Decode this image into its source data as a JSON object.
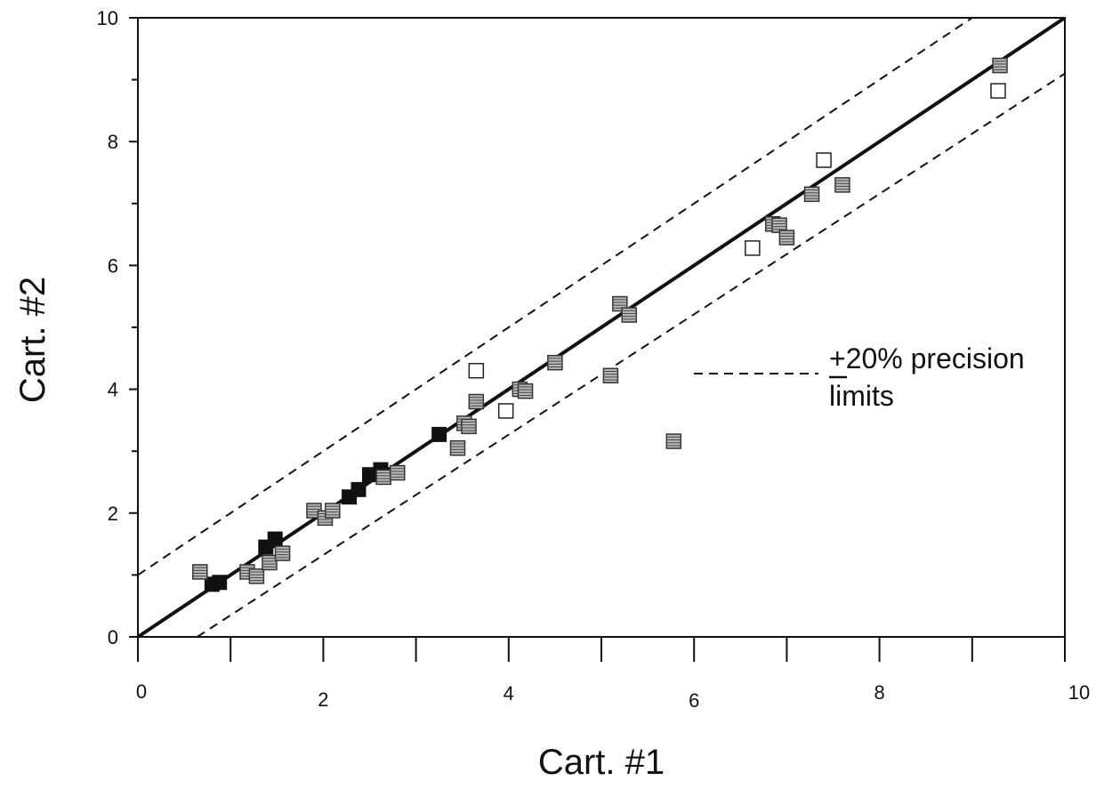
{
  "chart_data": {
    "type": "scatter",
    "title": "",
    "xlabel": "Cart. #1",
    "ylabel": "Cart. #2",
    "xlim": [
      0,
      10
    ],
    "ylim": [
      0,
      10
    ],
    "x_ticks": [
      "0",
      "2",
      "4",
      "6",
      "8",
      "10"
    ],
    "y_ticks": [
      "0",
      "2",
      "4",
      "6",
      "8",
      "10"
    ],
    "grid": false,
    "legend": {
      "text_line1": "+20% precision",
      "text_line2": "limits",
      "placement": "right"
    },
    "lines": [
      {
        "name": "1:1",
        "style": "solid",
        "x": [
          0,
          10
        ],
        "y": [
          0,
          10
        ]
      },
      {
        "name": "+20%",
        "style": "dashed",
        "x": [
          0,
          9
        ],
        "y": [
          1,
          10
        ]
      },
      {
        "name": "-20%",
        "style": "dashed",
        "x": [
          0.64,
          10
        ],
        "y": [
          0,
          9.1
        ]
      }
    ],
    "series": [
      {
        "marker": "filled-square",
        "color": "#111111",
        "x": [
          0.8,
          0.88,
          1.38,
          1.48,
          2.28,
          2.38,
          2.5,
          2.62,
          3.25
        ],
        "y": [
          0.85,
          0.88,
          1.45,
          1.58,
          2.26,
          2.38,
          2.62,
          2.7,
          3.27
        ]
      },
      {
        "marker": "hatched-square",
        "color": "#8a8a8a",
        "x": [
          0.67,
          1.18,
          1.28,
          1.42,
          1.56,
          1.9,
          2.02,
          2.1,
          2.65,
          2.8,
          3.45,
          3.52,
          3.57,
          3.65,
          4.12,
          4.18,
          4.5,
          5.1,
          5.2,
          5.3,
          5.78,
          6.85,
          6.92,
          7.0,
          7.27,
          7.6,
          9.3
        ],
        "y": [
          1.05,
          1.05,
          0.98,
          1.2,
          1.35,
          2.04,
          1.92,
          2.04,
          2.58,
          2.65,
          3.05,
          3.45,
          3.4,
          3.8,
          4.0,
          3.97,
          4.43,
          4.22,
          5.38,
          5.2,
          3.16,
          6.67,
          6.65,
          6.45,
          7.15,
          7.3,
          9.23
        ]
      },
      {
        "marker": "open-square",
        "color": "#ffffff",
        "x": [
          3.65,
          3.97,
          6.63,
          7.4,
          9.28
        ],
        "y": [
          4.3,
          3.65,
          6.28,
          7.7,
          8.82
        ]
      }
    ]
  }
}
